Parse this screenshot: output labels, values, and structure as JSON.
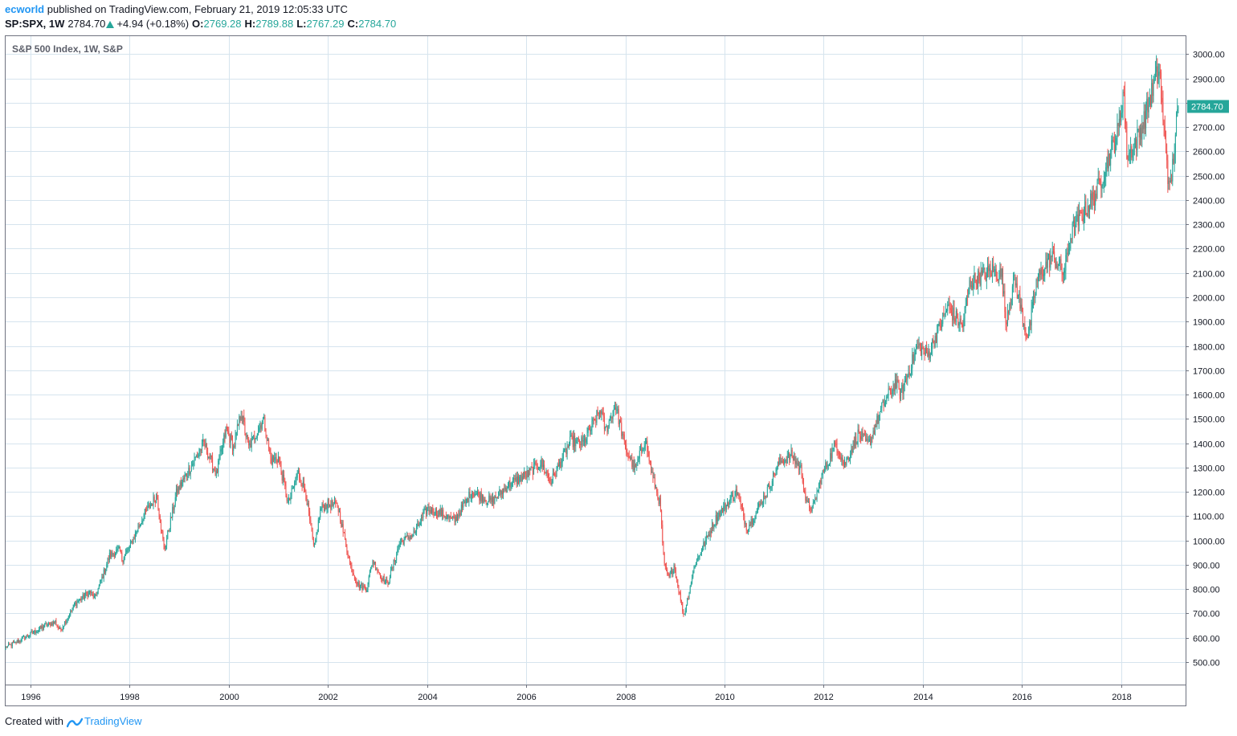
{
  "header": {
    "author": "ecworld",
    "published_text": "published on TradingView.com, February 21, 2019 12:05:33 UTC"
  },
  "symbol_bar": {
    "symbol": "SP:SPX, 1W",
    "last": "2784.70",
    "change": "+4.94 (+0.18%)",
    "open_label": "O:",
    "open": "2769.28",
    "high_label": "H:",
    "high": "2789.88",
    "low_label": "L:",
    "low": "2767.29",
    "close_label": "C:",
    "close": "2784.70"
  },
  "chart_data": {
    "type": "candlestick",
    "title": "S&P 500 Index, 1W, S&P",
    "ylim": [
      400,
      3050
    ],
    "y_ticks": [
      "500.00",
      "600.00",
      "700.00",
      "800.00",
      "900.00",
      "1000.00",
      "1100.00",
      "1200.00",
      "1300.00",
      "1400.00",
      "1500.00",
      "1600.00",
      "1700.00",
      "1800.00",
      "1900.00",
      "2000.00",
      "2100.00",
      "2200.00",
      "2300.00",
      "2400.00",
      "2500.00",
      "2600.00",
      "2700.00",
      "2800.00",
      "2900.00",
      "3000.00"
    ],
    "x_ticks": [
      "1996",
      "1998",
      "2000",
      "2002",
      "2004",
      "2006",
      "2008",
      "2010",
      "2012",
      "2014",
      "2016",
      "2018"
    ],
    "x_range": [
      1995.5,
      2019.87
    ],
    "last_price_label": "2784.70",
    "last_price": 2784.7,
    "up_color": "#26a69a",
    "down_color": "#ef5350",
    "grid": true,
    "weekly_close_anchors": [
      {
        "t": 1995.5,
        "v": 560
      },
      {
        "t": 1995.75,
        "v": 585
      },
      {
        "t": 1996.0,
        "v": 615
      },
      {
        "t": 1996.3,
        "v": 650
      },
      {
        "t": 1996.5,
        "v": 665
      },
      {
        "t": 1996.6,
        "v": 630
      },
      {
        "t": 1996.9,
        "v": 740
      },
      {
        "t": 1997.2,
        "v": 790
      },
      {
        "t": 1997.3,
        "v": 760
      },
      {
        "t": 1997.6,
        "v": 940
      },
      {
        "t": 1997.8,
        "v": 960
      },
      {
        "t": 1997.85,
        "v": 920
      },
      {
        "t": 1998.0,
        "v": 975
      },
      {
        "t": 1998.3,
        "v": 1110
      },
      {
        "t": 1998.55,
        "v": 1185
      },
      {
        "t": 1998.7,
        "v": 960
      },
      {
        "t": 1998.95,
        "v": 1200
      },
      {
        "t": 1999.2,
        "v": 1290
      },
      {
        "t": 1999.5,
        "v": 1400
      },
      {
        "t": 1999.75,
        "v": 1270
      },
      {
        "t": 1999.95,
        "v": 1460
      },
      {
        "t": 2000.1,
        "v": 1380
      },
      {
        "t": 2000.25,
        "v": 1530
      },
      {
        "t": 2000.4,
        "v": 1380
      },
      {
        "t": 2000.7,
        "v": 1500
      },
      {
        "t": 2000.85,
        "v": 1330
      },
      {
        "t": 2001.0,
        "v": 1340
      },
      {
        "t": 2001.2,
        "v": 1150
      },
      {
        "t": 2001.4,
        "v": 1280
      },
      {
        "t": 2001.55,
        "v": 1200
      },
      {
        "t": 2001.72,
        "v": 960
      },
      {
        "t": 2001.85,
        "v": 1130
      },
      {
        "t": 2002.0,
        "v": 1150
      },
      {
        "t": 2002.2,
        "v": 1140
      },
      {
        "t": 2002.45,
        "v": 900
      },
      {
        "t": 2002.6,
        "v": 820
      },
      {
        "t": 2002.78,
        "v": 800
      },
      {
        "t": 2002.9,
        "v": 920
      },
      {
        "t": 2003.05,
        "v": 860
      },
      {
        "t": 2003.2,
        "v": 820
      },
      {
        "t": 2003.45,
        "v": 990
      },
      {
        "t": 2003.75,
        "v": 1030
      },
      {
        "t": 2004.0,
        "v": 1130
      },
      {
        "t": 2004.3,
        "v": 1110
      },
      {
        "t": 2004.55,
        "v": 1080
      },
      {
        "t": 2004.9,
        "v": 1200
      },
      {
        "t": 2005.3,
        "v": 1160
      },
      {
        "t": 2005.65,
        "v": 1230
      },
      {
        "t": 2006.0,
        "v": 1270
      },
      {
        "t": 2006.3,
        "v": 1320
      },
      {
        "t": 2006.5,
        "v": 1240
      },
      {
        "t": 2006.9,
        "v": 1410
      },
      {
        "t": 2007.15,
        "v": 1400
      },
      {
        "t": 2007.5,
        "v": 1540
      },
      {
        "t": 2007.6,
        "v": 1450
      },
      {
        "t": 2007.8,
        "v": 1560
      },
      {
        "t": 2008.0,
        "v": 1380
      },
      {
        "t": 2008.2,
        "v": 1290
      },
      {
        "t": 2008.4,
        "v": 1420
      },
      {
        "t": 2008.55,
        "v": 1260
      },
      {
        "t": 2008.7,
        "v": 1150
      },
      {
        "t": 2008.78,
        "v": 900
      },
      {
        "t": 2008.88,
        "v": 840
      },
      {
        "t": 2008.98,
        "v": 900
      },
      {
        "t": 2009.18,
        "v": 690
      },
      {
        "t": 2009.4,
        "v": 900
      },
      {
        "t": 2009.6,
        "v": 990
      },
      {
        "t": 2009.85,
        "v": 1100
      },
      {
        "t": 2010.25,
        "v": 1200
      },
      {
        "t": 2010.45,
        "v": 1050
      },
      {
        "t": 2010.6,
        "v": 1100
      },
      {
        "t": 2010.85,
        "v": 1200
      },
      {
        "t": 2011.1,
        "v": 1320
      },
      {
        "t": 2011.35,
        "v": 1350
      },
      {
        "t": 2011.55,
        "v": 1290
      },
      {
        "t": 2011.65,
        "v": 1150
      },
      {
        "t": 2011.78,
        "v": 1130
      },
      {
        "t": 2011.95,
        "v": 1260
      },
      {
        "t": 2012.25,
        "v": 1400
      },
      {
        "t": 2012.42,
        "v": 1310
      },
      {
        "t": 2012.7,
        "v": 1440
      },
      {
        "t": 2012.9,
        "v": 1390
      },
      {
        "t": 2013.2,
        "v": 1560
      },
      {
        "t": 2013.45,
        "v": 1650
      },
      {
        "t": 2013.55,
        "v": 1600
      },
      {
        "t": 2013.9,
        "v": 1800
      },
      {
        "t": 2014.1,
        "v": 1760
      },
      {
        "t": 2014.5,
        "v": 1960
      },
      {
        "t": 2014.8,
        "v": 1880
      },
      {
        "t": 2014.95,
        "v": 2060
      },
      {
        "t": 2015.4,
        "v": 2110
      },
      {
        "t": 2015.6,
        "v": 2090
      },
      {
        "t": 2015.67,
        "v": 1900
      },
      {
        "t": 2015.85,
        "v": 2080
      },
      {
        "t": 2016.05,
        "v": 1880
      },
      {
        "t": 2016.13,
        "v": 1840
      },
      {
        "t": 2016.3,
        "v": 2070
      },
      {
        "t": 2016.6,
        "v": 2170
      },
      {
        "t": 2016.85,
        "v": 2100
      },
      {
        "t": 2017.0,
        "v": 2270
      },
      {
        "t": 2017.5,
        "v": 2430
      },
      {
        "t": 2017.95,
        "v": 2690
      },
      {
        "t": 2018.05,
        "v": 2860
      },
      {
        "t": 2018.12,
        "v": 2580
      },
      {
        "t": 2018.3,
        "v": 2640
      },
      {
        "t": 2018.45,
        "v": 2720
      },
      {
        "t": 2018.7,
        "v": 2900
      },
      {
        "t": 2018.78,
        "v": 2930
      },
      {
        "t": 2018.85,
        "v": 2700
      },
      {
        "t": 2018.9,
        "v": 2640
      },
      {
        "t": 2018.97,
        "v": 2420
      },
      {
        "t": 2019.02,
        "v": 2500
      },
      {
        "t": 2019.15,
        "v": 2780
      }
    ]
  },
  "footer": {
    "created_with": "Created with",
    "brand": "TradingView"
  }
}
